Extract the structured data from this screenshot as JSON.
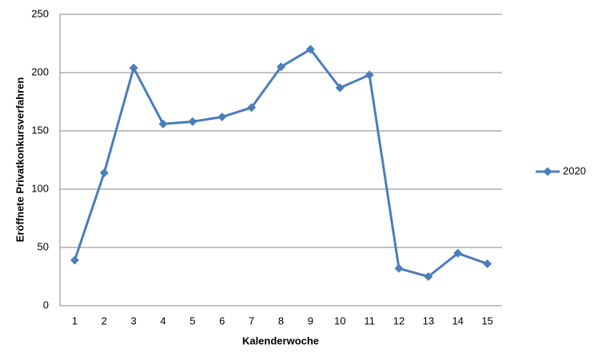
{
  "chart_data": {
    "type": "line",
    "x_label": "Kalenderwoche",
    "y_label": "Eröffnete Privatkonkursverfahren",
    "categories": [
      "1",
      "2",
      "3",
      "4",
      "5",
      "6",
      "7",
      "8",
      "9",
      "10",
      "11",
      "12",
      "13",
      "14",
      "15"
    ],
    "series": [
      {
        "name": "2020",
        "color": "#4a7ebb",
        "values": [
          39,
          114,
          204,
          156,
          158,
          162,
          170,
          205,
          220,
          187,
          198,
          32,
          25,
          45,
          36
        ]
      }
    ],
    "ylim": [
      0,
      250
    ],
    "yticks": [
      0,
      50,
      100,
      150,
      200,
      250
    ],
    "grid": true,
    "legend": "right"
  }
}
